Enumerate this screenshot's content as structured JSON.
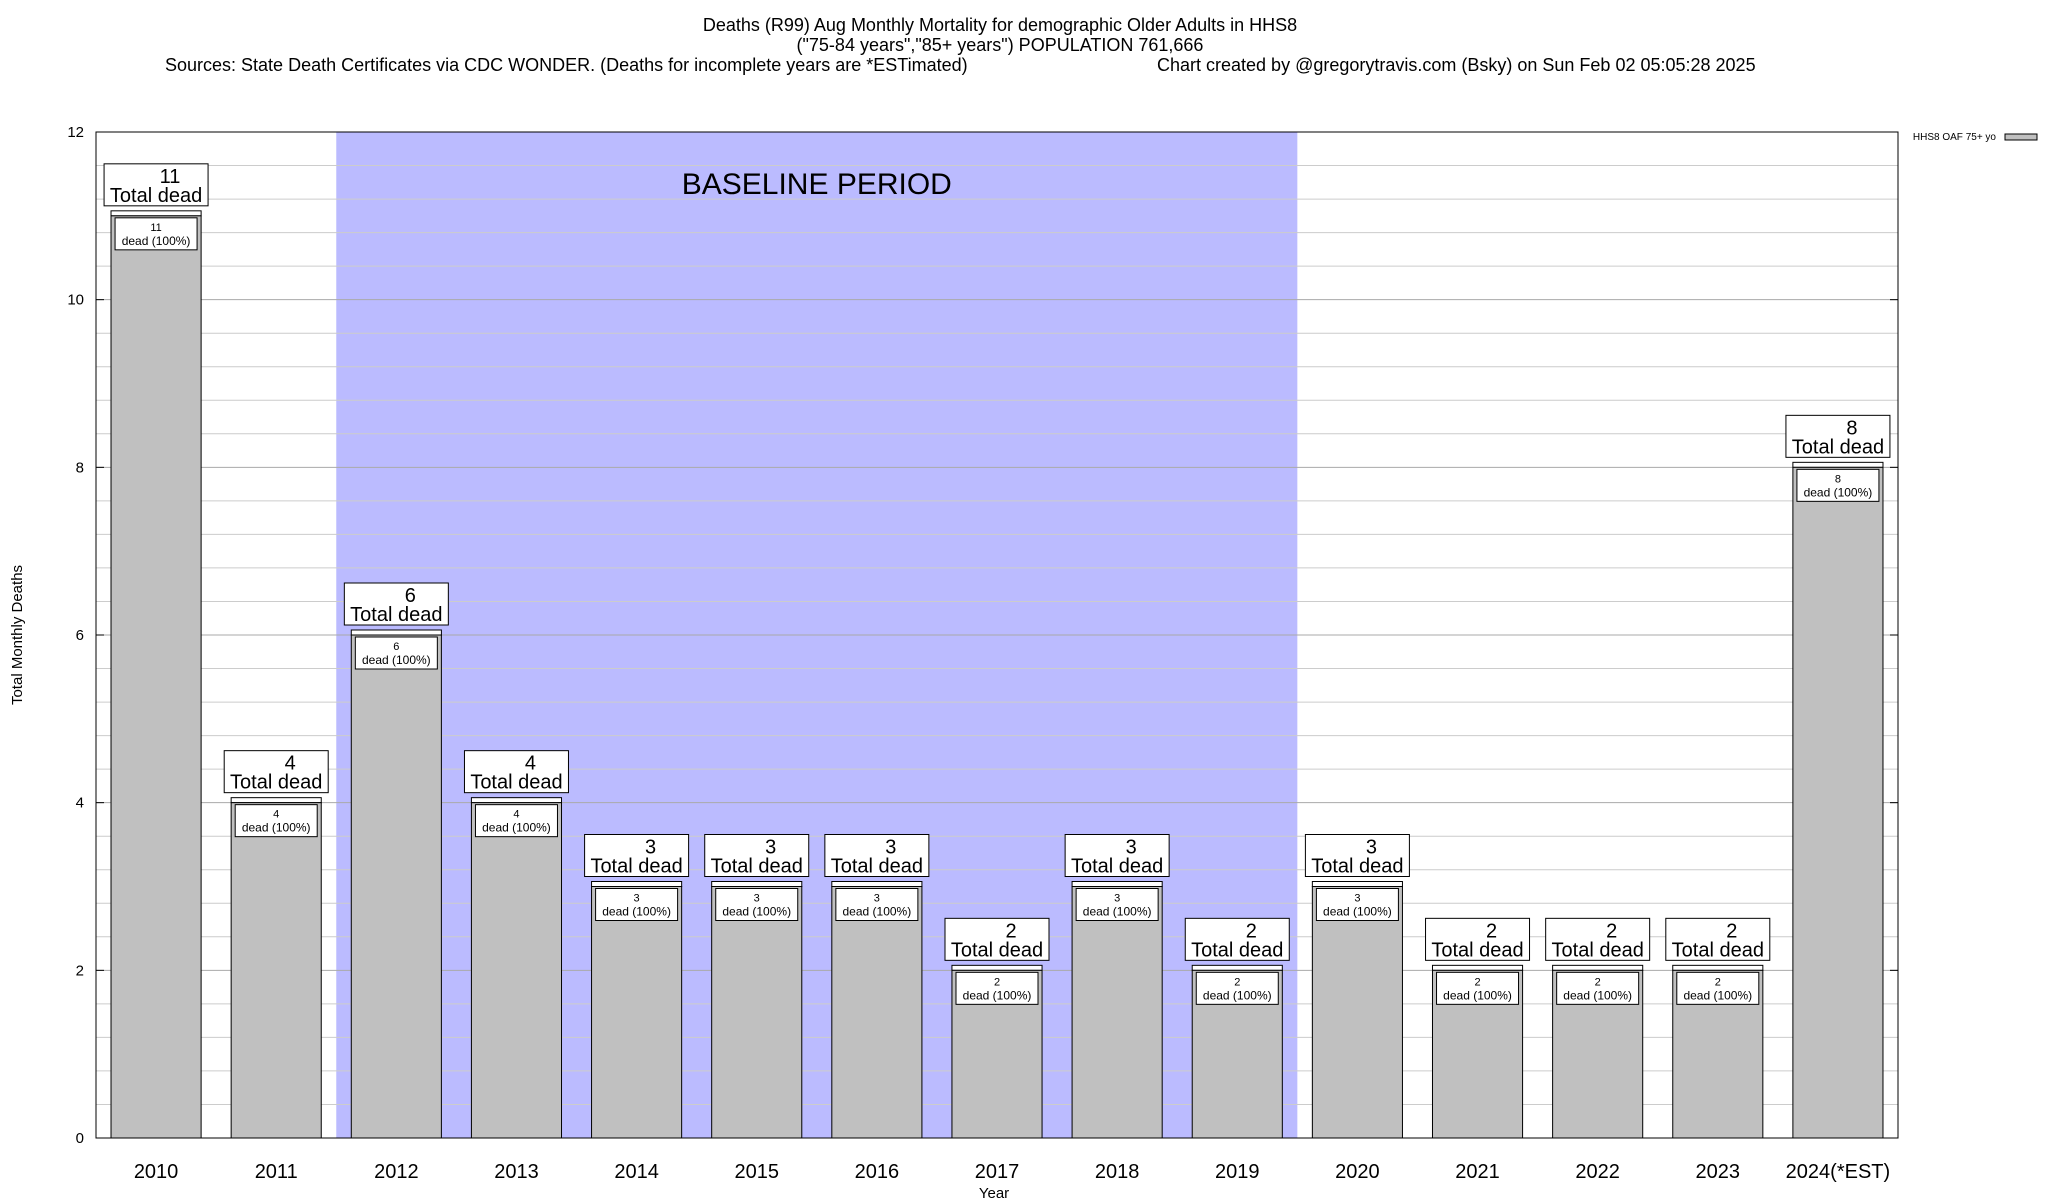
{
  "chart_data": {
    "type": "bar",
    "title_lines": [
      "Deaths (R99) Aug Monthly Mortality for demographic Older Adults in HHS8",
      "(\"75-84 years\",\"85+ years\") POPULATION 761,666"
    ],
    "sources": "Sources: State Death Certificates via CDC WONDER. (Deaths for incomplete years are *ESTimated)",
    "credit": "Chart created by @gregorytravis.com (Bsky) on Sun Feb 02 05:05:28 2025",
    "xlabel": "Year",
    "ylabel": "Total Monthly Deaths",
    "ylim": [
      0,
      12
    ],
    "y_ticks": [
      "0",
      "2",
      "4",
      "6",
      "8",
      "10",
      "12"
    ],
    "grid": true,
    "legend": {
      "label": "HHS8 OAF 75+ yo",
      "position": "top-right"
    },
    "baseline": {
      "label": "BASELINE PERIOD",
      "start": "2012",
      "end": "2019",
      "color": "#bbbbff"
    },
    "bar_color": "#c0c0c0",
    "categories": [
      "2010",
      "2011",
      "2012",
      "2013",
      "2014",
      "2015",
      "2016",
      "2017",
      "2018",
      "2019",
      "2020",
      "2021",
      "2022",
      "2023",
      "2024(*EST)"
    ],
    "values": [
      11,
      4,
      6,
      4,
      3,
      3,
      3,
      2,
      3,
      2,
      3,
      2,
      2,
      2,
      8
    ],
    "total_label_suffix": "Total dead",
    "inner_label_suffix": "dead (100%)"
  }
}
